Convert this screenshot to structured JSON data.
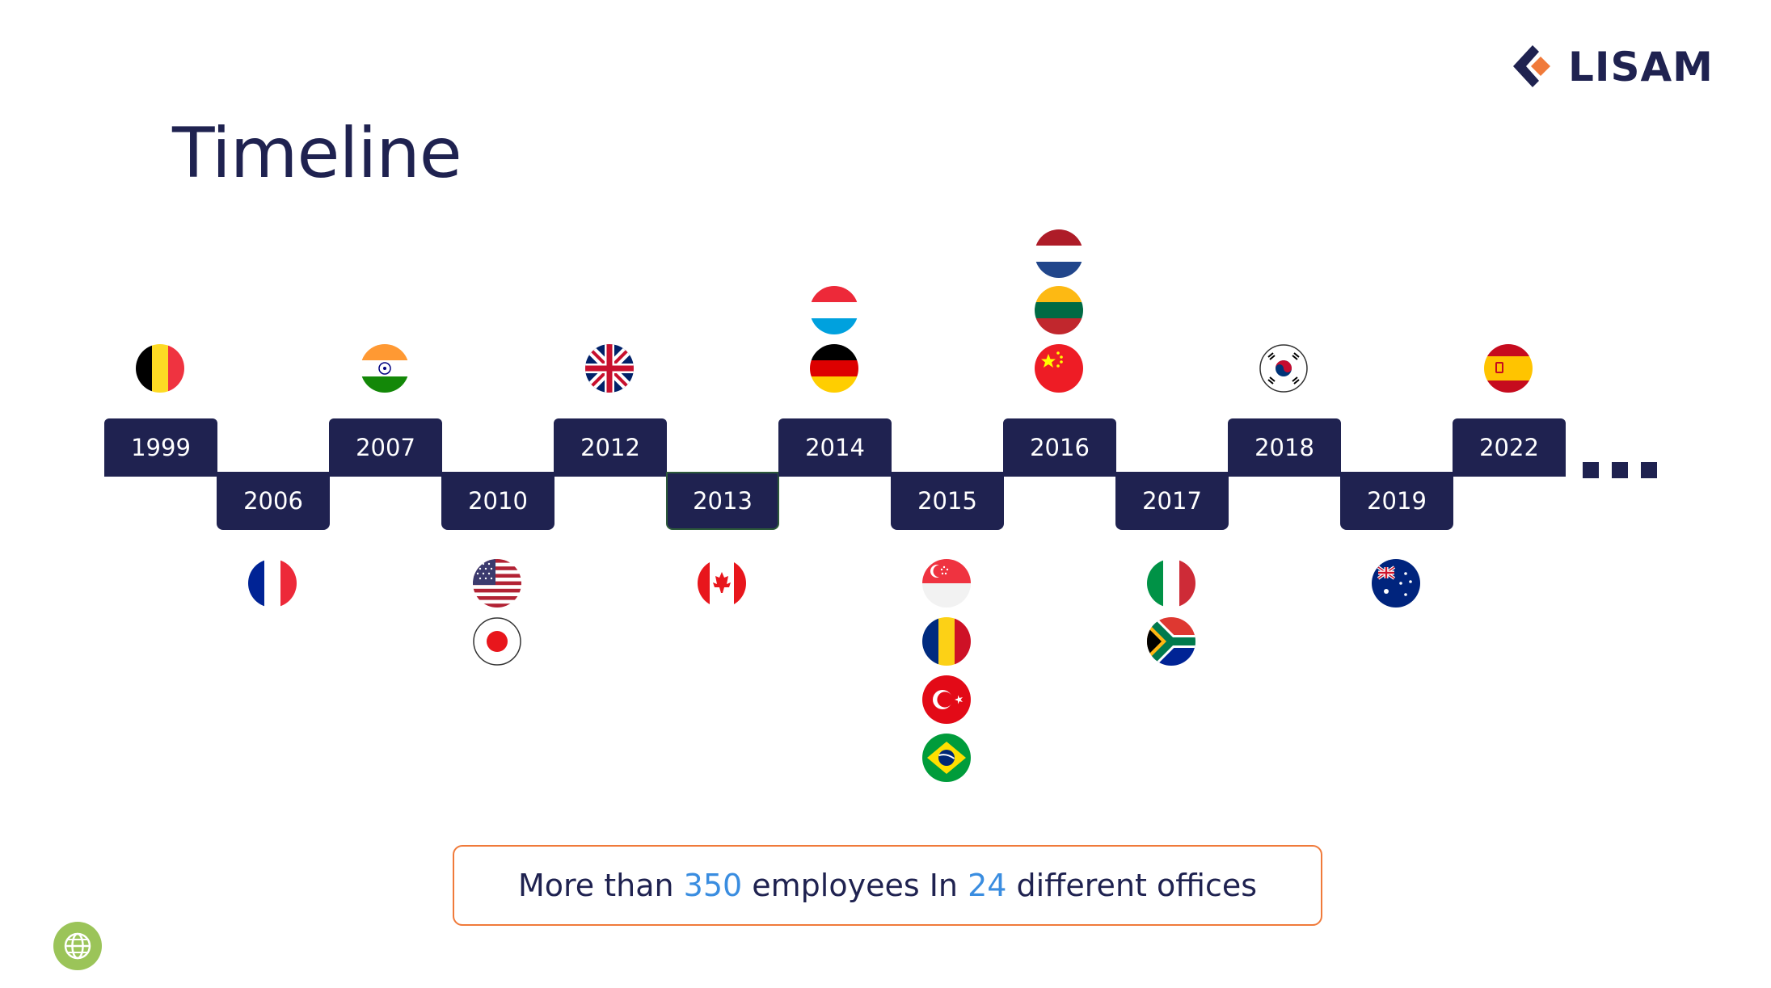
{
  "title": "Timeline",
  "logo": {
    "text": "LISAM",
    "icon": "lisam-chevron-logo",
    "colors": {
      "navy": "#1f2250",
      "orange": "#f07a3a"
    }
  },
  "timeline": [
    {
      "year": "1999",
      "flags": [
        "flag-belgium"
      ]
    },
    {
      "year": "2006",
      "flags": [
        "flag-france"
      ]
    },
    {
      "year": "2007",
      "flags": [
        "flag-india"
      ]
    },
    {
      "year": "2010",
      "flags": [
        "flag-usa",
        "flag-japan"
      ]
    },
    {
      "year": "2012",
      "flags": [
        "flag-united-kingdom"
      ]
    },
    {
      "year": "2013",
      "flags": [
        "flag-canada"
      ]
    },
    {
      "year": "2014",
      "flags": [
        "flag-luxembourg",
        "flag-germany"
      ]
    },
    {
      "year": "2015",
      "flags": [
        "flag-singapore",
        "flag-romania",
        "flag-turkey",
        "flag-brazil"
      ]
    },
    {
      "year": "2016",
      "flags": [
        "flag-netherlands",
        "flag-lithuania",
        "flag-china"
      ]
    },
    {
      "year": "2017",
      "flags": [
        "flag-italy",
        "flag-south-africa"
      ]
    },
    {
      "year": "2018",
      "flags": [
        "flag-south-korea"
      ]
    },
    {
      "year": "2019",
      "flags": [
        "flag-australia"
      ]
    },
    {
      "year": "2022",
      "flags": [
        "flag-spain"
      ]
    }
  ],
  "stats": {
    "prefix": "More than ",
    "employees": "350",
    "middle": " employees In ",
    "offices": "24",
    "suffix": " different offices"
  },
  "colors": {
    "navy": "#1f2250",
    "orange": "#f07a3a",
    "accent_blue": "#3a8de0",
    "globe_green": "#9bc459"
  },
  "footer_icon": "globe-icon"
}
